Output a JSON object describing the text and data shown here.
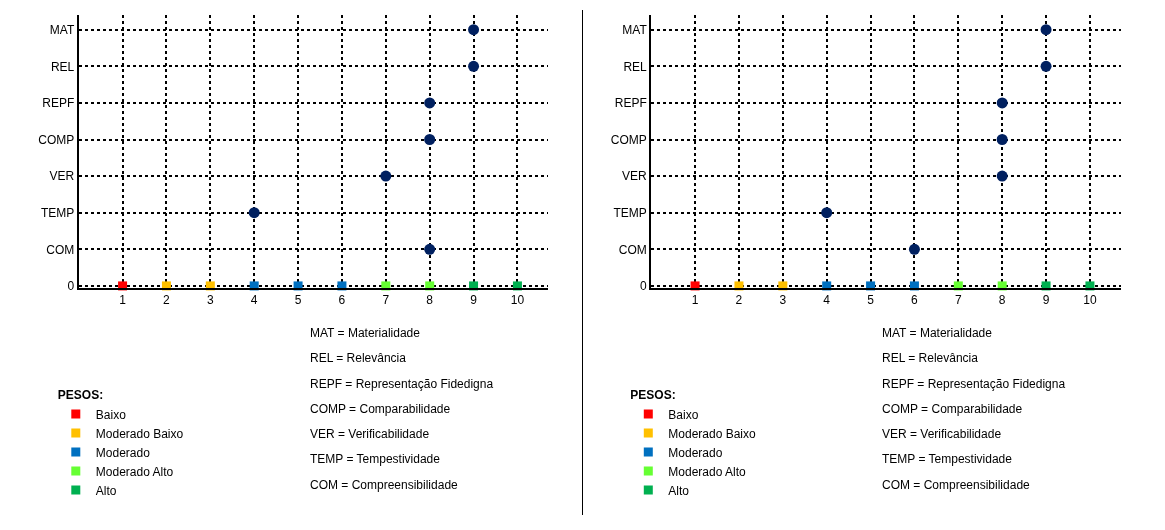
{
  "chart_data": [
    {
      "type": "scatter",
      "orientation": "horizontal",
      "categories": [
        "MAT",
        "REL",
        "REPF",
        "COMP",
        "VER",
        "TEMP",
        "COM",
        "0"
      ],
      "xlim": [
        0,
        10.7
      ],
      "xticks": [
        1,
        2,
        3,
        4,
        5,
        6,
        7,
        8,
        9,
        10
      ],
      "grid": true,
      "line_style": "dotted",
      "legend": "bottom left",
      "legend_title": "PESOS:",
      "series": [
        {
          "color": "#002060",
          "marker": "circle",
          "values": [
            9,
            9,
            8,
            8,
            7,
            4,
            8,
            null
          ]
        },
        {
          "name": "Baixo",
          "color": "#ff0000",
          "marker": "square",
          "values": [
            null,
            null,
            null,
            null,
            null,
            null,
            null,
            1
          ]
        },
        {
          "name": "Moderado Baixo",
          "color": "#ffc000",
          "marker": "square",
          "values": [
            null,
            null,
            null,
            null,
            null,
            null,
            null,
            2
          ]
        },
        {
          "color": "#ffc000",
          "marker": "square",
          "values": [
            null,
            null,
            null,
            null,
            null,
            null,
            null,
            3
          ]
        },
        {
          "name": "Moderado",
          "color": "#0070c0",
          "marker": "square",
          "values": [
            null,
            null,
            null,
            null,
            null,
            null,
            null,
            4
          ]
        },
        {
          "color": "#0070c0",
          "marker": "square",
          "values": [
            null,
            null,
            null,
            null,
            null,
            null,
            null,
            5
          ]
        },
        {
          "color": "#0070c0",
          "marker": "square",
          "values": [
            null,
            null,
            null,
            null,
            null,
            null,
            null,
            6
          ]
        },
        {
          "name": "Moderado Alto",
          "color": "#66ff33",
          "marker": "square",
          "values": [
            null,
            null,
            null,
            null,
            null,
            null,
            null,
            7
          ]
        },
        {
          "color": "#66ff33",
          "marker": "square",
          "values": [
            null,
            null,
            null,
            null,
            null,
            null,
            null,
            8
          ]
        },
        {
          "name": "Alto",
          "color": "#00b050",
          "marker": "square",
          "values": [
            null,
            null,
            null,
            null,
            null,
            null,
            null,
            9
          ]
        },
        {
          "color": "#00b050",
          "marker": "square",
          "values": [
            null,
            null,
            null,
            null,
            null,
            null,
            null,
            10
          ]
        }
      ],
      "annotations": [
        "MAT = Materialidade",
        "REL = Relevância",
        "REPF = Representação Fidedigna",
        "COMP = Comparabilidade",
        "VER = Verificabilidade",
        "TEMP = Tempestividade",
        "COM = Compreensibilidade"
      ]
    },
    {
      "type": "scatter",
      "orientation": "horizontal",
      "categories": [
        "MAT",
        "REL",
        "REPF",
        "COMP",
        "VER",
        "TEMP",
        "COM",
        "0"
      ],
      "xlim": [
        0,
        10.7
      ],
      "xticks": [
        1,
        2,
        3,
        4,
        5,
        6,
        7,
        8,
        9,
        10
      ],
      "grid": true,
      "line_style": "dotted",
      "legend": "bottom left",
      "legend_title": "PESOS:",
      "series": [
        {
          "color": "#002060",
          "marker": "circle",
          "values": [
            9,
            9,
            8,
            8,
            8,
            4,
            6,
            null
          ]
        },
        {
          "name": "Baixo",
          "color": "#ff0000",
          "marker": "square",
          "values": [
            null,
            null,
            null,
            null,
            null,
            null,
            null,
            1
          ]
        },
        {
          "name": "Moderado Baixo",
          "color": "#ffc000",
          "marker": "square",
          "values": [
            null,
            null,
            null,
            null,
            null,
            null,
            null,
            2
          ]
        },
        {
          "color": "#ffc000",
          "marker": "square",
          "values": [
            null,
            null,
            null,
            null,
            null,
            null,
            null,
            3
          ]
        },
        {
          "name": "Moderado",
          "color": "#0070c0",
          "marker": "square",
          "values": [
            null,
            null,
            null,
            null,
            null,
            null,
            null,
            4
          ]
        },
        {
          "color": "#0070c0",
          "marker": "square",
          "values": [
            null,
            null,
            null,
            null,
            null,
            null,
            null,
            5
          ]
        },
        {
          "color": "#0070c0",
          "marker": "square",
          "values": [
            null,
            null,
            null,
            null,
            null,
            null,
            null,
            6
          ]
        },
        {
          "name": "Moderado Alto",
          "color": "#66ff33",
          "marker": "square",
          "values": [
            null,
            null,
            null,
            null,
            null,
            null,
            null,
            7
          ]
        },
        {
          "color": "#66ff33",
          "marker": "square",
          "values": [
            null,
            null,
            null,
            null,
            null,
            null,
            null,
            8
          ]
        },
        {
          "name": "Alto",
          "color": "#00b050",
          "marker": "square",
          "values": [
            null,
            null,
            null,
            null,
            null,
            null,
            null,
            9
          ]
        },
        {
          "color": "#00b050",
          "marker": "square",
          "values": [
            null,
            null,
            null,
            null,
            null,
            null,
            null,
            10
          ]
        }
      ],
      "annotations": [
        "MAT = Materialidade",
        "REL = Relevância",
        "REPF = Representação Fidedigna",
        "COMP = Comparabilidade",
        "VER = Verificabilidade",
        "TEMP = Tempestividade",
        "COM = Compreensibilidade"
      ]
    }
  ]
}
